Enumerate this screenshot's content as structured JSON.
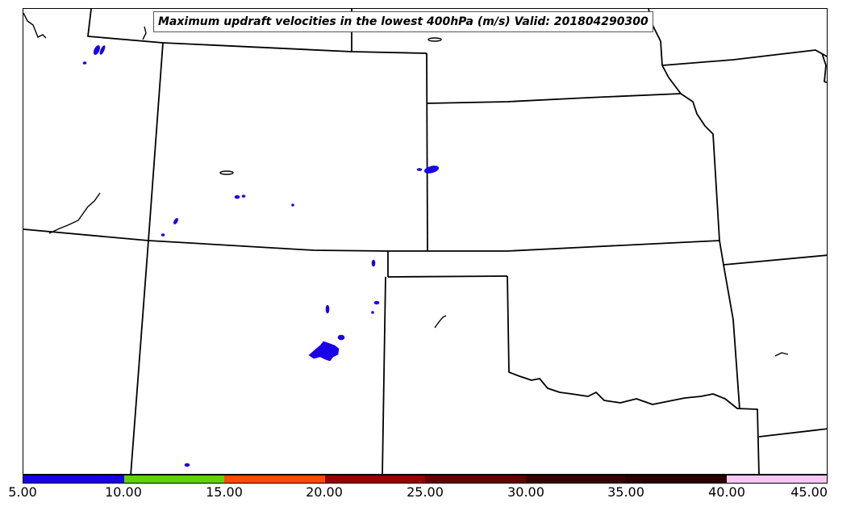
{
  "title": "Maximum updraft velocities in the lowest 400hPa (m/s) Valid: 201804290300",
  "colorbar": {
    "ticks": [
      "5.00",
      "10.00",
      "15.00",
      "20.00",
      "25.00",
      "30.00",
      "35.00",
      "40.00",
      "45.00"
    ],
    "colors": [
      "#1a00e6",
      "#5fd400",
      "#ff4a00",
      "#990000",
      "#660000",
      "#3c0000",
      "#2a0000",
      "#f8c8f2",
      "#fde6fc"
    ]
  },
  "map": {
    "outline_color": "#000000",
    "fill_color": "#1a00e6"
  }
}
